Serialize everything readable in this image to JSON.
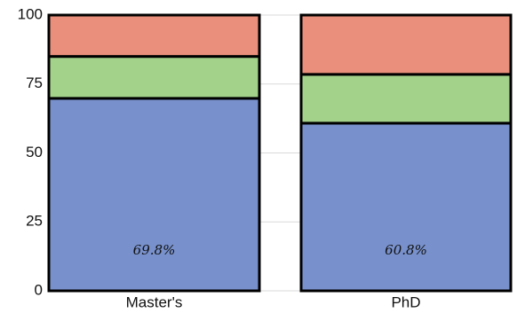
{
  "chart_data": {
    "type": "stacked-bar",
    "categories": [
      "Master's",
      "PhD"
    ],
    "series": [
      {
        "color": "#7891cc",
        "values": [
          69.8,
          60.8
        ],
        "value_labels": [
          "69.8%",
          "60.8%"
        ]
      },
      {
        "color": "#a3d28a",
        "values": [
          15.2,
          17.7
        ]
      },
      {
        "color": "#ea8f7b",
        "values": [
          15,
          21.5
        ]
      }
    ],
    "ylim": [
      0,
      100
    ],
    "yticks": [
      0,
      25,
      50,
      75,
      100
    ],
    "grid": true
  }
}
